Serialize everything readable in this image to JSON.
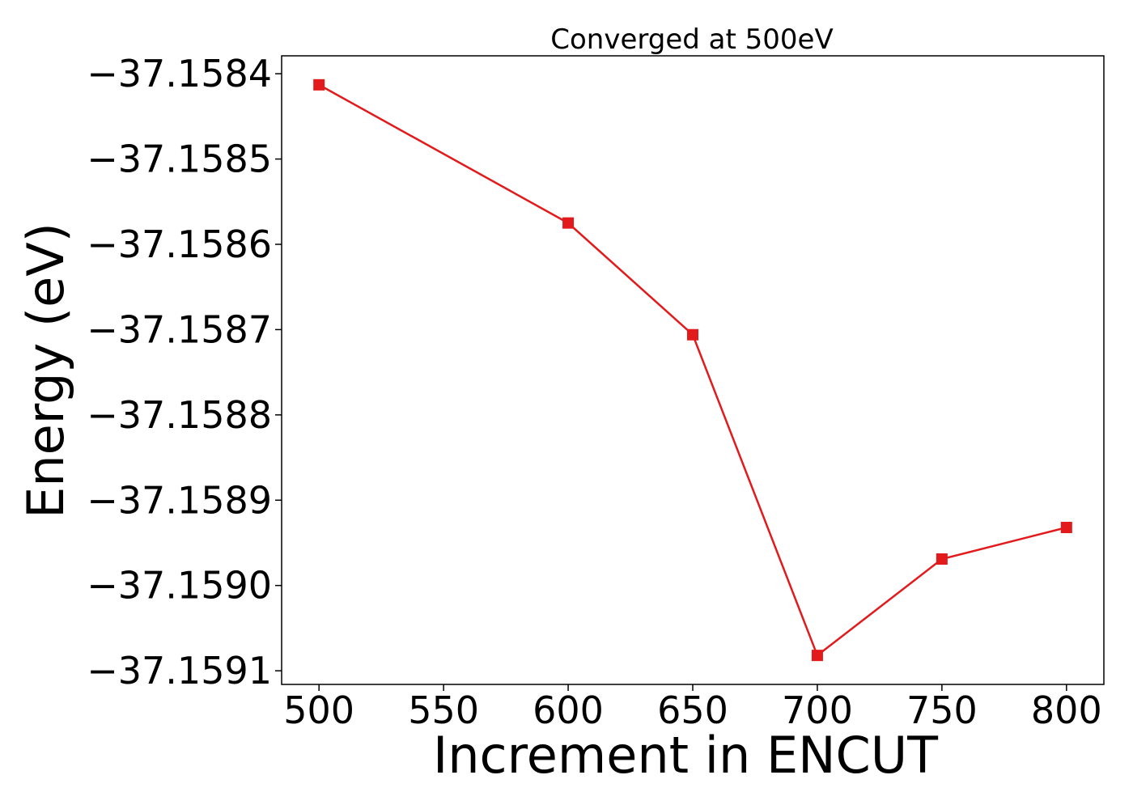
{
  "chart_data": {
    "type": "line",
    "title": "Converged at 500eV",
    "xlabel": "Increment in ENCUT",
    "ylabel": "Energy (eV)",
    "x": [
      500,
      600,
      650,
      700,
      750,
      800
    ],
    "series": [
      {
        "values": [
          -37.158413,
          -37.158575,
          -37.158706,
          -37.159082,
          -37.158969,
          -37.158932
        ],
        "color": "#e31a1c",
        "marker": "square"
      }
    ],
    "xticks": [
      500,
      550,
      600,
      650,
      700,
      750,
      800
    ],
    "xtick_labels": [
      "500",
      "550",
      "600",
      "650",
      "700",
      "750",
      "800"
    ],
    "yticks": [
      -37.1584,
      -37.1585,
      -37.1586,
      -37.1587,
      -37.1588,
      -37.1589,
      -37.159,
      -37.1591
    ],
    "ytick_labels": [
      "−37.1584",
      "−37.1585",
      "−37.1586",
      "−37.1587",
      "−37.1588",
      "−37.1589",
      "−37.1590",
      "−37.1591"
    ],
    "xlim": [
      485,
      815
    ],
    "ylim": [
      -37.159116,
      -37.158379
    ],
    "grid": false,
    "legend": false
  }
}
